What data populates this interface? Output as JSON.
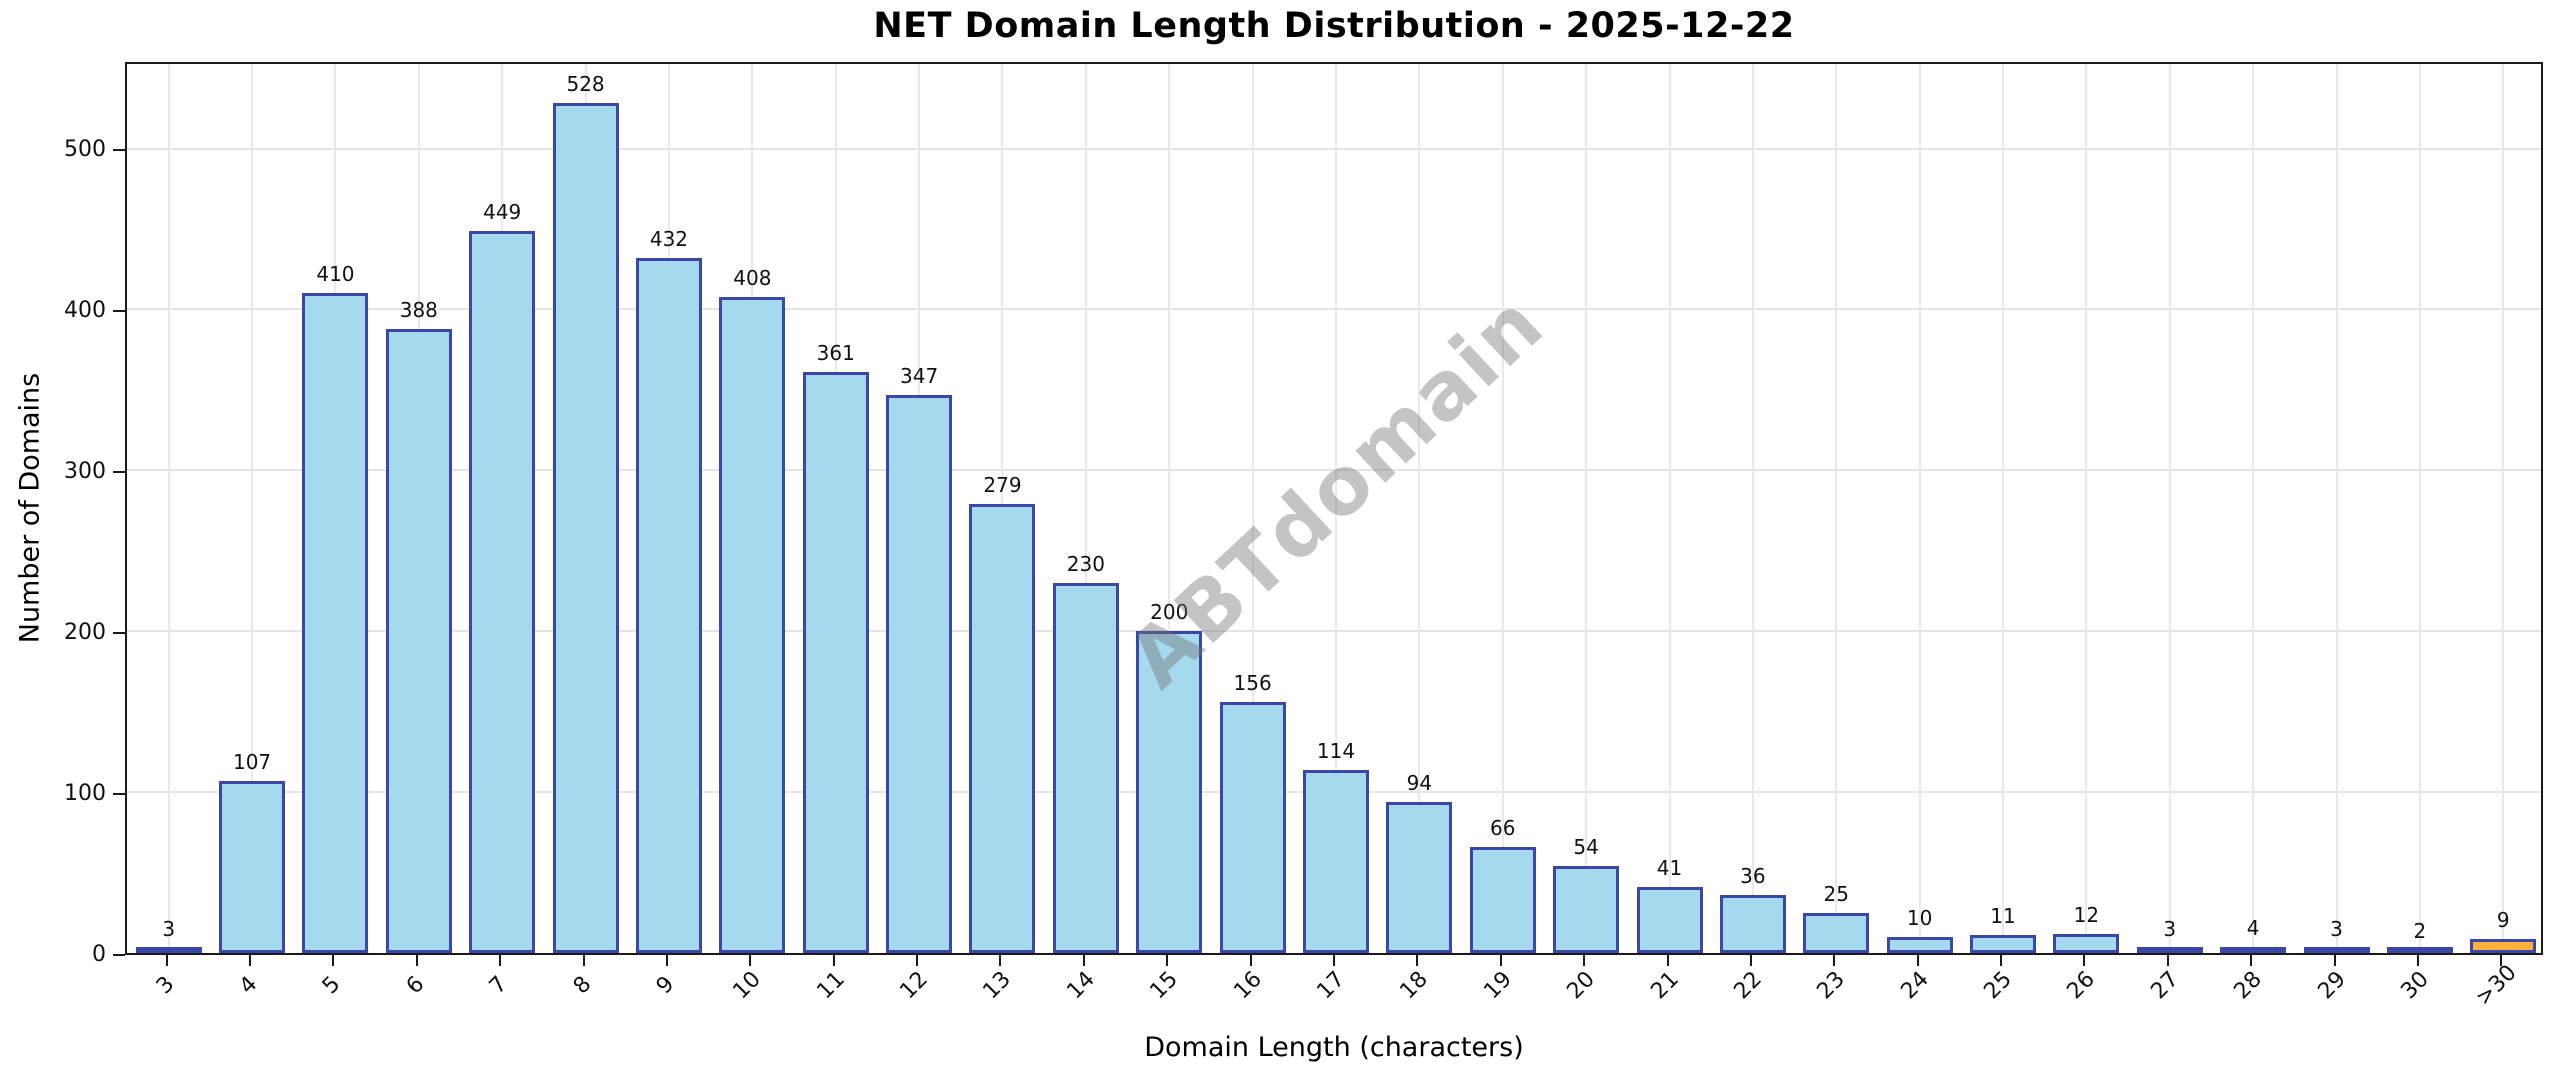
{
  "chart_data": {
    "type": "bar",
    "title": "NET Domain Length Distribution - 2025-12-22",
    "xlabel": "Domain Length (characters)",
    "ylabel": "Number of Domains",
    "watermark": "ABTdomain",
    "categories": [
      "3",
      "4",
      "5",
      "6",
      "7",
      "8",
      "9",
      "10",
      "11",
      "12",
      "13",
      "14",
      "15",
      "16",
      "17",
      "18",
      "19",
      "20",
      "21",
      "22",
      "23",
      "24",
      "25",
      "26",
      "27",
      "28",
      "29",
      "30",
      ">30"
    ],
    "values": [
      3,
      107,
      410,
      388,
      449,
      528,
      432,
      408,
      361,
      347,
      279,
      230,
      200,
      156,
      114,
      94,
      66,
      54,
      41,
      36,
      25,
      10,
      11,
      12,
      3,
      4,
      3,
      2,
      9
    ],
    "yticks": [
      0,
      100,
      200,
      300,
      400,
      500
    ],
    "ylim": [
      0,
      555
    ],
    "grid": true,
    "legend_position": "none",
    "bar_fill_color": "#a4d9ee",
    "bar_edge_color": "#3b47a6",
    "highlight_index": 28,
    "highlight_fill_color": "#fcb43c",
    "value_label_color": "#111111"
  }
}
